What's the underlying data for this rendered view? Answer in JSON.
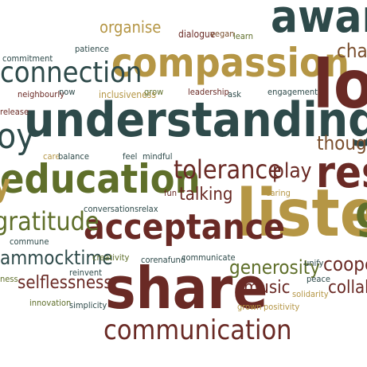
{
  "words": {
    "aware": "aware",
    "compassion": "compassion",
    "understanding": "understanding",
    "love": "love",
    "listen": "listen",
    "share": "share",
    "education": "education",
    "acceptance": "acceptance",
    "communication": "communication",
    "tolerance": "tolerance",
    "connection": "connection",
    "gratitude": "gratitude",
    "respect": "res",
    "play": "play",
    "talking": "talking",
    "thoughtful": "thought",
    "charity": "char",
    "organise": "organise",
    "dialogue": "dialogue",
    "vegan": "vegan",
    "learn": "learn",
    "commitment": "commitment",
    "patience": "patience",
    "neighbourly": "neighbourly",
    "now": "now",
    "inclusiveness": "inclusiveness",
    "grow": "grow",
    "leadership": "leadership",
    "ask": "ask",
    "engagement": "engagement",
    "release": "release",
    "care": "care",
    "balance": "balance",
    "feel": "feel",
    "mindful": "mindful",
    "fun": "fun",
    "caring": "caring",
    "conversations": "conversations",
    "relax": "relax",
    "commune": "commune",
    "hammocktime": "ammocktime",
    "creativity": "creativity",
    "corenafund": "corenafund",
    "communicate": "communicate",
    "generosity": "generosity",
    "unify": "unify",
    "cooperation": "cooper",
    "selflessness": "selflessness",
    "reinvent": "reinvent",
    "innovation": "innovation",
    "simplicity": "simplicity",
    "music": "music",
    "peace": "peace",
    "solidarity": "solidarity",
    "collaboration": "collab",
    "grown": "grown",
    "positivity": "positivity",
    "kindness": "ness",
    "joy": "oy",
    "g_right": "g",
    "y_left": "y"
  },
  "colors": {
    "dark": "#2e4a4a",
    "green": "#5f6f2a",
    "gold": "#b59645",
    "red": "#6a2a25",
    "brown": "#7a4f2e"
  }
}
